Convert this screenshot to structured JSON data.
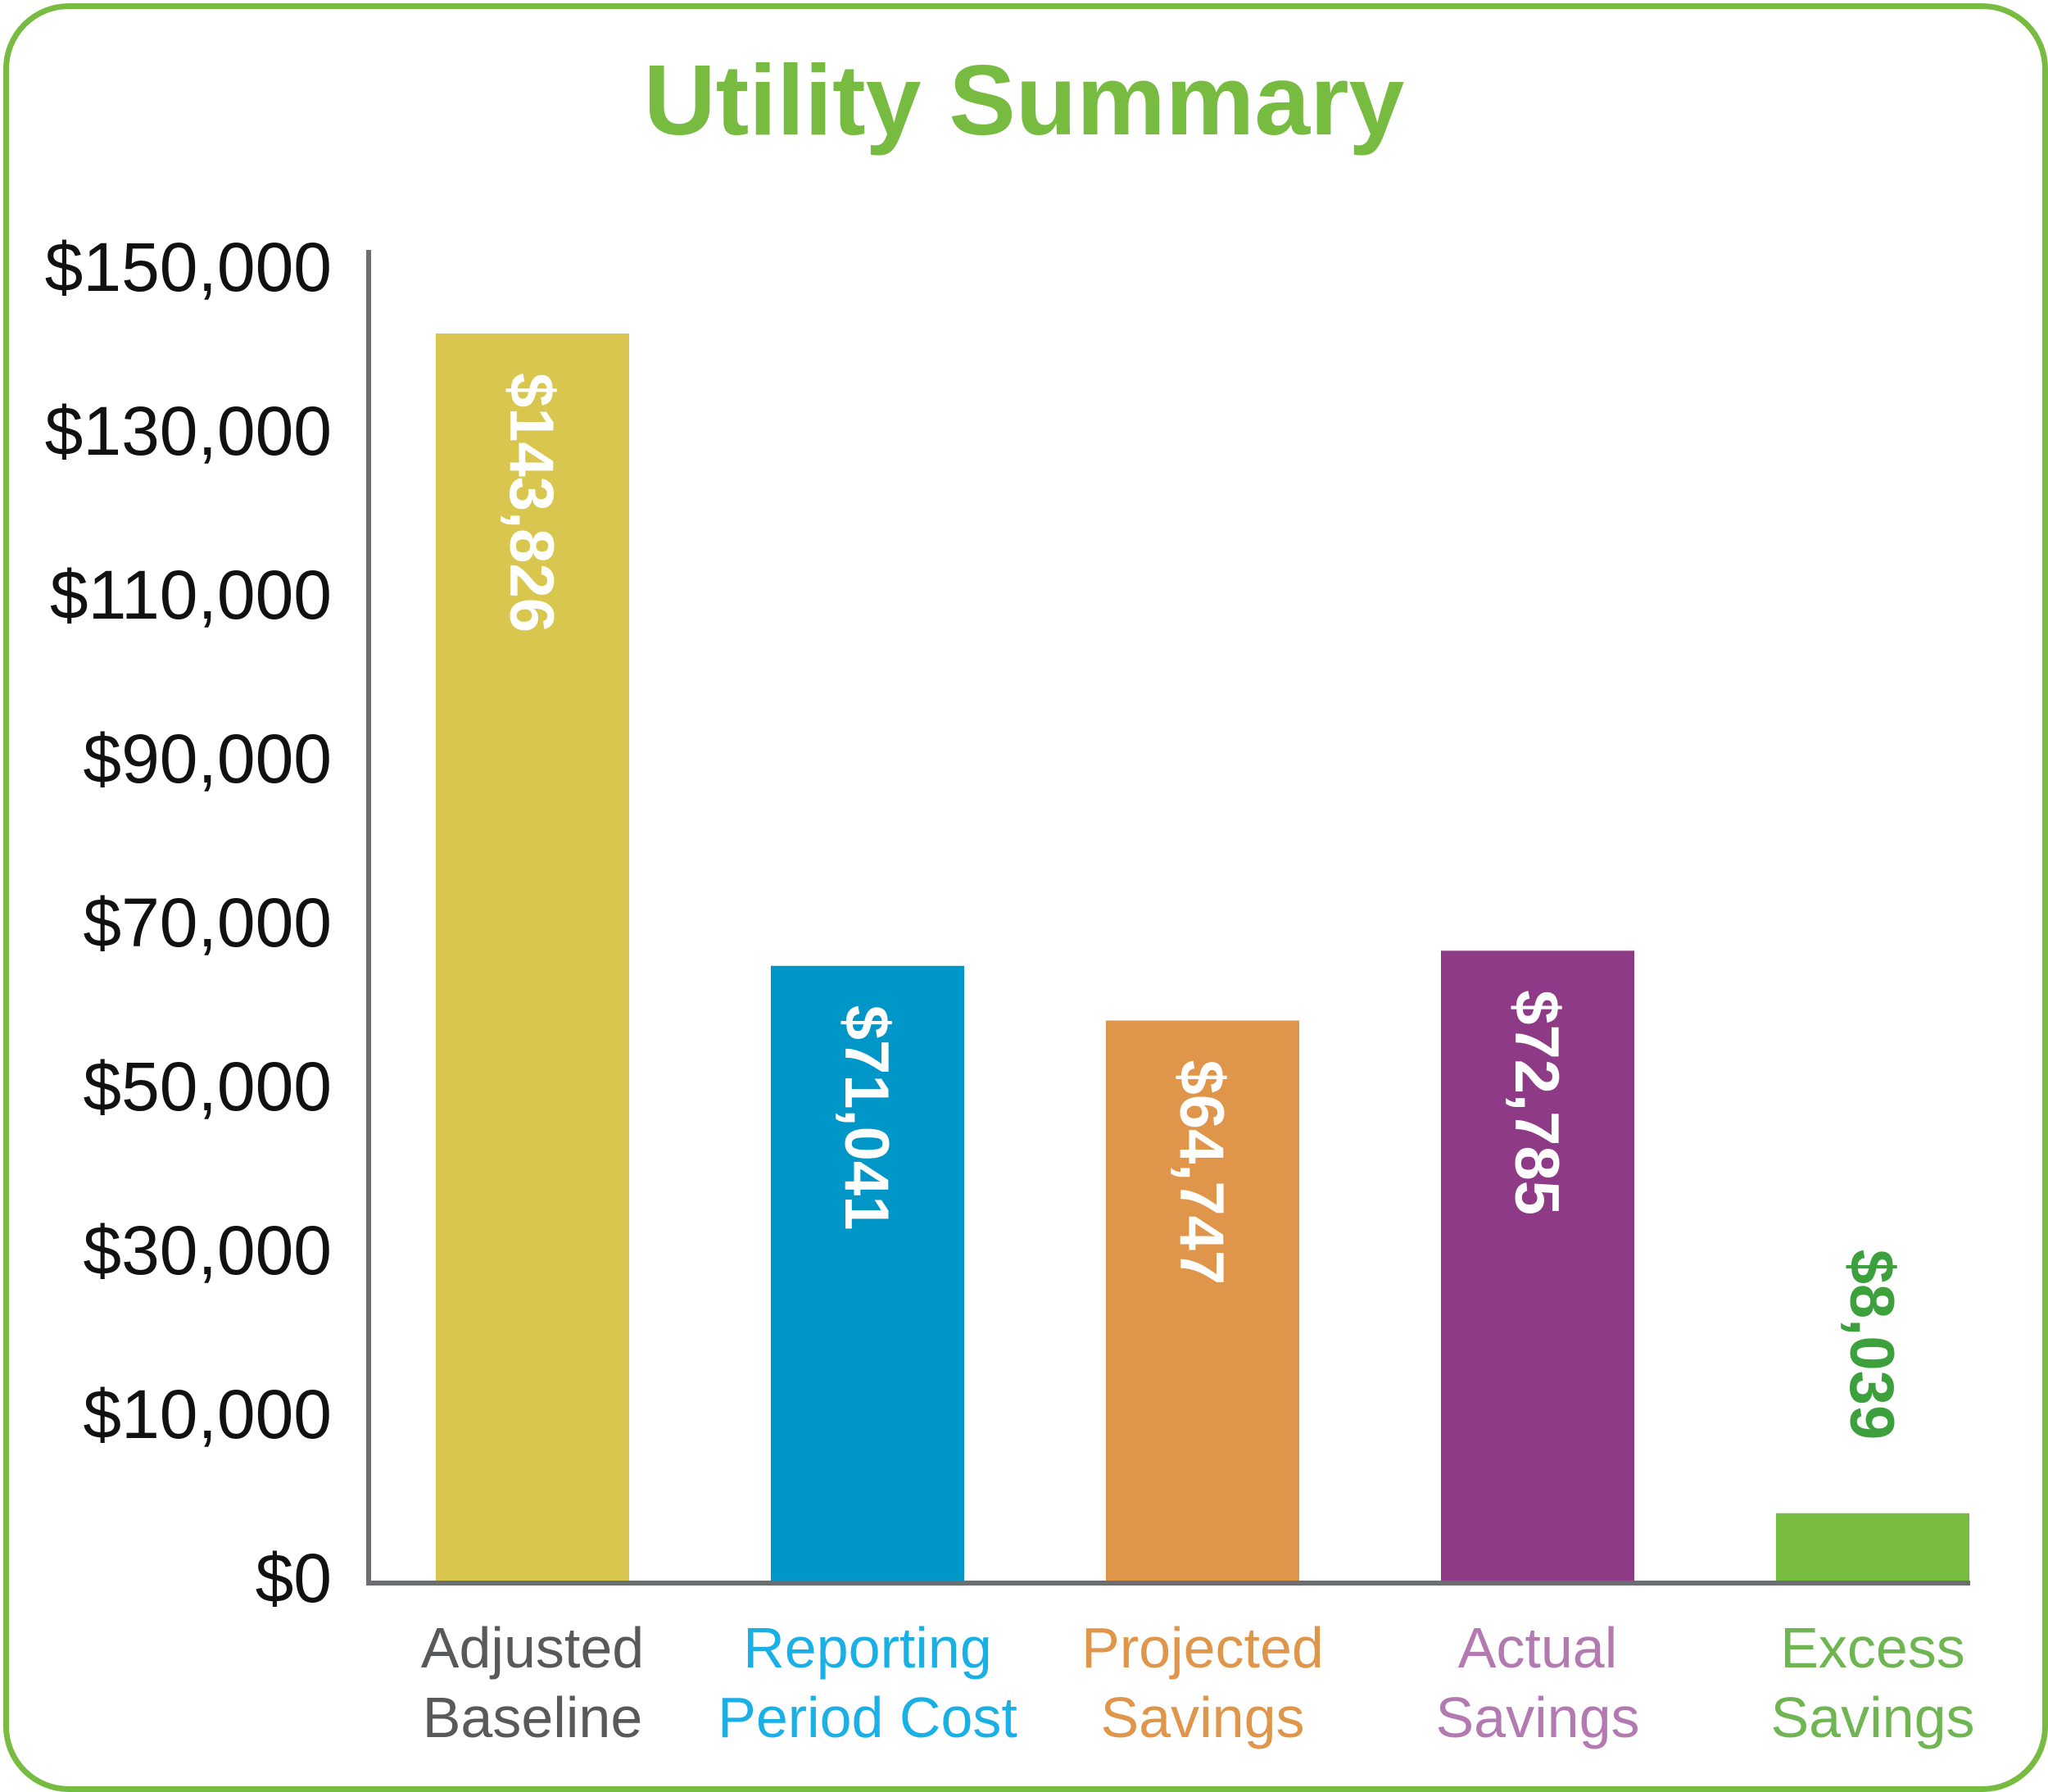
{
  "colors": {
    "frame": "#77bb41",
    "title": "#77bb41",
    "axis": "#6d6e71"
  },
  "chart_data": {
    "type": "bar",
    "title": "Utility Summary",
    "xlabel": "",
    "ylabel": "",
    "ylim": [
      0,
      150000
    ],
    "grid": false,
    "legend": "none",
    "y_ticks": [
      {
        "value": 0,
        "label": "$0"
      },
      {
        "value": 10000,
        "label": "$10,000"
      },
      {
        "value": 30000,
        "label": "$30,000"
      },
      {
        "value": 50000,
        "label": "$50,000"
      },
      {
        "value": 70000,
        "label": "$70,000"
      },
      {
        "value": 90000,
        "label": "$90,000"
      },
      {
        "value": 110000,
        "label": "$110,000"
      },
      {
        "value": 130000,
        "label": "$130,000"
      },
      {
        "value": 150000,
        "label": "$150,000"
      }
    ],
    "bars": [
      {
        "category": [
          "Adjusted",
          "Baseline"
        ],
        "value": 143826,
        "label": "$143,826",
        "bar_color": "#d8c64f",
        "text_color": "#58595b",
        "label_color": "#ffffff",
        "label_position": "inside"
      },
      {
        "category": [
          "Reporting",
          "Period Cost"
        ],
        "value": 71041,
        "label": "$71,041",
        "bar_color": "#0096c8",
        "text_color": "#1ab0e6",
        "label_color": "#ffffff",
        "label_position": "inside"
      },
      {
        "category": [
          "Projected",
          "Savings"
        ],
        "value": 64747,
        "label": "$64,747",
        "bar_color": "#e0964a",
        "text_color": "#e0964a",
        "label_color": "#ffffff",
        "label_position": "inside"
      },
      {
        "category": [
          "Actual",
          "Savings"
        ],
        "value": 72785,
        "label": "$72,785",
        "bar_color": "#8e3a86",
        "text_color": "#b27ab0",
        "label_color": "#ffffff",
        "label_position": "inside"
      },
      {
        "category": [
          "Excess",
          "Savings"
        ],
        "value": 8039,
        "label": "$8,039",
        "bar_color": "#77bb41",
        "text_color": "#6fb552",
        "label_color": "#3ca03c",
        "label_position": "above"
      }
    ]
  }
}
